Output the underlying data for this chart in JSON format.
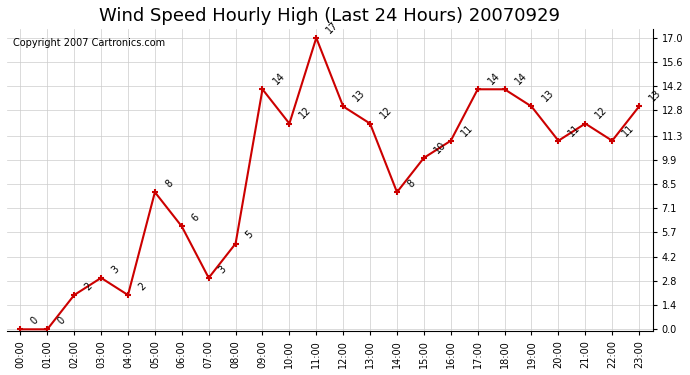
{
  "title": "Wind Speed Hourly High (Last 24 Hours) 20070929",
  "copyright": "Copyright 2007 Cartronics.com",
  "hours": [
    "00:00",
    "01:00",
    "02:00",
    "03:00",
    "04:00",
    "05:00",
    "06:00",
    "07:00",
    "08:00",
    "09:00",
    "10:00",
    "11:00",
    "12:00",
    "13:00",
    "14:00",
    "15:00",
    "16:00",
    "17:00",
    "18:00",
    "19:00",
    "20:00",
    "21:00",
    "22:00",
    "23:00"
  ],
  "values": [
    0,
    0,
    2,
    3,
    2,
    8,
    6,
    3,
    5,
    14,
    12,
    17,
    13,
    12,
    8,
    10,
    11,
    14,
    14,
    13,
    11,
    12,
    11,
    13
  ],
  "line_color": "#cc0000",
  "marker_color": "#cc0000",
  "bg_color": "#ffffff",
  "plot_bg_color": "#ffffff",
  "grid_color": "#cccccc",
  "yticks": [
    0.0,
    1.4,
    2.8,
    4.2,
    5.7,
    7.1,
    8.5,
    9.9,
    11.3,
    12.8,
    14.2,
    15.6,
    17.0
  ],
  "ylim": [
    -0.1,
    17.5
  ],
  "title_fontsize": 13,
  "label_fontsize": 7,
  "copyright_fontsize": 7
}
